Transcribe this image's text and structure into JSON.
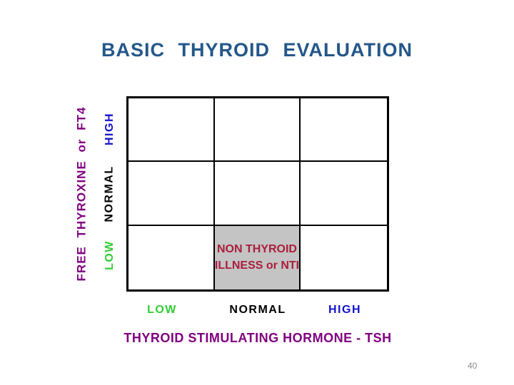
{
  "slide": {
    "title": "BASIC THYROID EVALUATION",
    "page_number": "40"
  },
  "colors": {
    "title": "#24578A",
    "axis_title": "#800080",
    "tick_low": "#33CC33",
    "tick_normal": "#000000",
    "tick_high": "#1313CC",
    "highlight_text": "#A91E3C",
    "highlight_bg": "#C4C4C4",
    "grid_line": "#000000",
    "page_number": "#8C8C8C"
  },
  "y_axis": {
    "label": "FREE THYROXINE or FT4",
    "ticks": [
      {
        "label": "HIGH"
      },
      {
        "label": "NORMAL"
      },
      {
        "label": "LOW"
      }
    ]
  },
  "x_axis": {
    "label": "THYROID STIMULATING HORMONE - TSH",
    "ticks": [
      {
        "label": "LOW"
      },
      {
        "label": "NORMAL"
      },
      {
        "label": "HIGH"
      }
    ]
  },
  "matrix": {
    "rows": 3,
    "cols": 3,
    "highlight": {
      "row_label": "LOW",
      "col_label": "NORMAL",
      "line1": "NON THYROID",
      "line2": "ILLNESS or NTI"
    }
  }
}
